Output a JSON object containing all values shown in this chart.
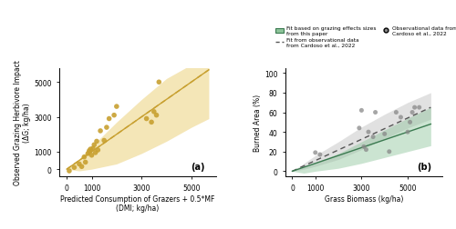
{
  "panel_a": {
    "scatter_x": [
      100,
      300,
      500,
      600,
      700,
      750,
      850,
      900,
      950,
      1000,
      1050,
      1100,
      1150,
      1200,
      1250,
      1350,
      1500,
      1600,
      1700,
      1900,
      2000,
      3200,
      3400,
      3500,
      3600,
      3700
    ],
    "scatter_y": [
      -100,
      100,
      300,
      150,
      700,
      400,
      900,
      1050,
      1150,
      800,
      1200,
      1400,
      950,
      1600,
      1100,
      2200,
      1650,
      2400,
      2900,
      3100,
      3600,
      2900,
      2700,
      3300,
      3100,
      5000
    ],
    "line_x": [
      0,
      5700
    ],
    "line_y": [
      0,
      5700
    ],
    "ci_x": [
      0,
      500,
      1000,
      2000,
      3000,
      4000,
      5000,
      5700
    ],
    "ci_lower": [
      0,
      -100,
      0,
      300,
      900,
      1600,
      2400,
      2900
    ],
    "ci_upper": [
      0,
      600,
      1300,
      2700,
      4000,
      5200,
      6000,
      6600
    ],
    "line_color": "#C8A030",
    "fill_color": "#E8C860",
    "scatter_color": "#C8A030",
    "xlabel": "Predicted Consumption of Grazers + 0.5*MF\n(DMI; kg/ha)",
    "ylabel": "Observed Grazing Herbivore Impact\n(ΔG; kg/ha)",
    "xlim": [
      -300,
      6000
    ],
    "ylim": [
      -400,
      5800
    ],
    "xticks": [
      0,
      1000,
      3000,
      5000
    ],
    "yticks": [
      0,
      1000,
      3000,
      5000
    ],
    "label": "(a)"
  },
  "panel_b": {
    "scatter_x": [
      1000,
      1200,
      2900,
      3000,
      3100,
      3200,
      3300,
      3500,
      3600,
      4000,
      4200,
      4500,
      4700,
      5000,
      5100,
      5200,
      5300,
      5500
    ],
    "scatter_y": [
      19,
      17,
      44,
      62,
      25,
      22,
      40,
      35,
      60,
      38,
      20,
      60,
      55,
      40,
      50,
      60,
      65,
      65
    ],
    "line1_x": [
      0,
      6000
    ],
    "line1_y": [
      0,
      48
    ],
    "line1_ci_x": [
      0,
      500,
      1000,
      2000,
      3000,
      4000,
      5000,
      6000
    ],
    "line1_ci_lower": [
      0,
      -2,
      0,
      3,
      8,
      14,
      20,
      26
    ],
    "line1_ci_upper": [
      0,
      4,
      9,
      18,
      30,
      42,
      54,
      65
    ],
    "line2_x": [
      0,
      6000
    ],
    "line2_y": [
      0,
      65
    ],
    "line2_ci_x": [
      0,
      500,
      1000,
      2000,
      3000,
      4000,
      5000,
      6000
    ],
    "line2_ci_lower": [
      0,
      2,
      5,
      12,
      22,
      33,
      44,
      53
    ],
    "line2_ci_upper": [
      0,
      8,
      16,
      30,
      45,
      58,
      70,
      80
    ],
    "line1_color": "#3a7a50",
    "line1_fill": "#8dc49a",
    "line2_color": "#555555",
    "line2_fill": "#aaaaaa",
    "scatter_color": "#888888",
    "xlabel": "Grass Biomass (kg/ha)",
    "ylabel": "Burned Area (%)",
    "xlim": [
      -300,
      6500
    ],
    "ylim": [
      -5,
      105
    ],
    "xticks": [
      0,
      1000,
      3000,
      5000
    ],
    "yticks": [
      0,
      20,
      40,
      60,
      80,
      100
    ],
    "label": "(b)"
  },
  "legend": {
    "items": [
      "Fit based on grazing effects sizes\nfrom this paper",
      "Fit from observational data\nfrom Cardoso et al., 2022",
      "Observational data from\nCardoso et al., 2022"
    ],
    "line1_color": "#3a7a50",
    "line1_fill": "#8dc49a",
    "line2_color": "#555555",
    "line2_fill": "#aaaaaa",
    "scatter_color": "#888888"
  },
  "bg_color": "#ffffff"
}
